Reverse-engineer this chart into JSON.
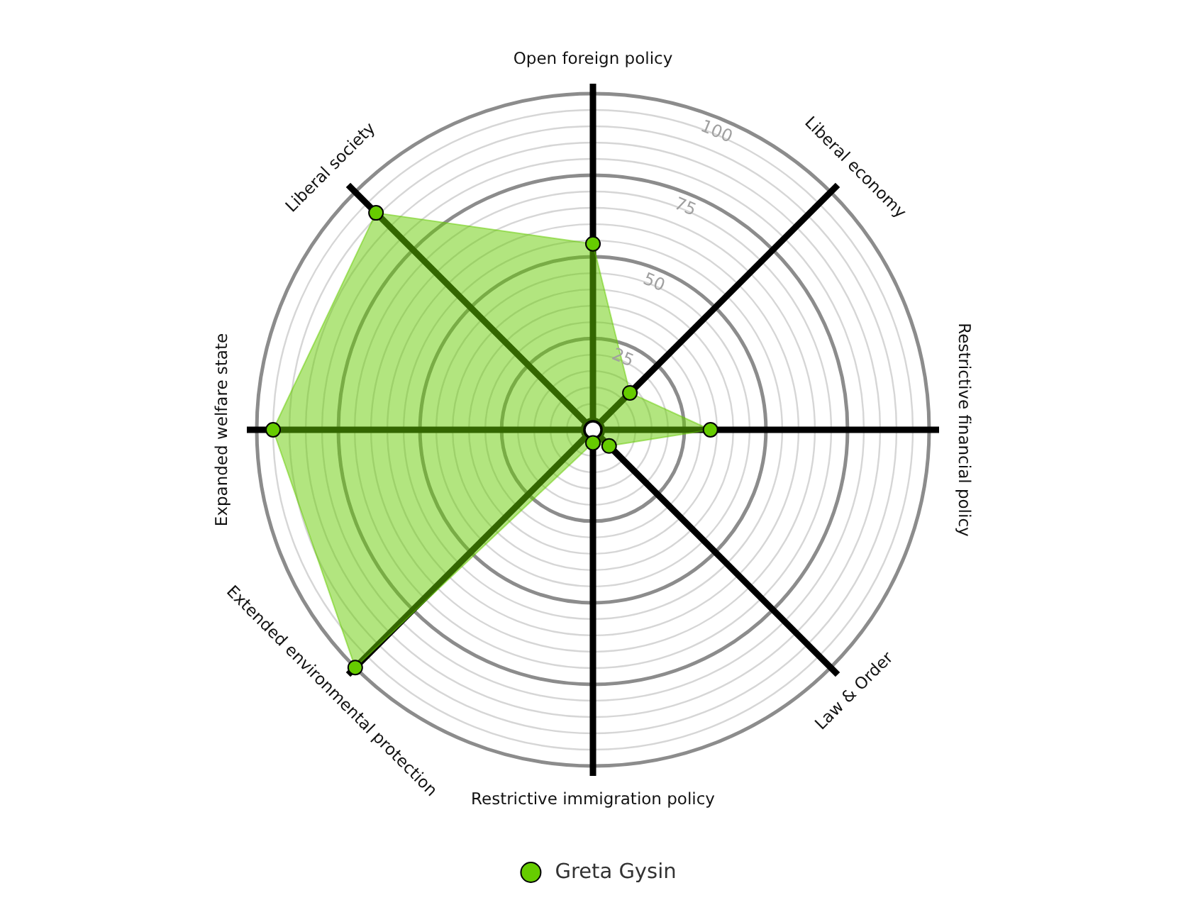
{
  "chart_data": {
    "type": "radar",
    "categories": [
      "Open foreign policy",
      "Liberal economy",
      "Restrictive financial policy",
      "Law & Order",
      "Restrictive immigration policy",
      "Extended environmental protection",
      "Expanded welfare state",
      "Liberal society"
    ],
    "series": [
      {
        "name": "Greta Gysin",
        "color": "#66cc00",
        "values": [
          54,
          13,
          33,
          4,
          1,
          100,
          95,
          91
        ]
      }
    ],
    "ylim": [
      -3,
      100
    ],
    "yticks": [
      25,
      50,
      75,
      100
    ],
    "grid": true,
    "legend": "bottom",
    "marker": "circle"
  }
}
